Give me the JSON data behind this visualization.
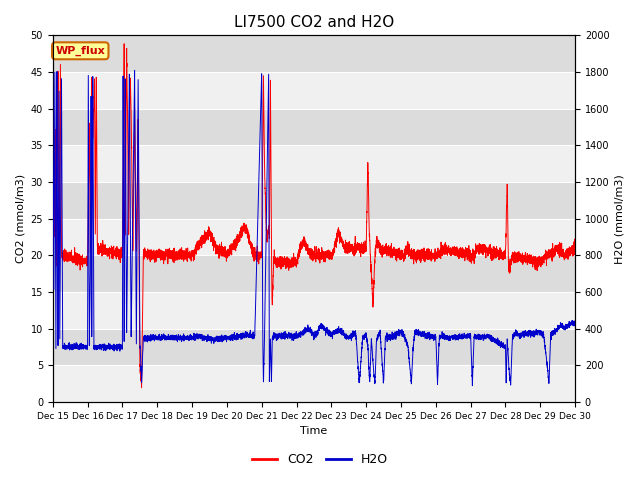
{
  "title": "LI7500 CO2 and H2O",
  "xlabel": "Time",
  "ylabel_left": "CO2 (mmol/m3)",
  "ylabel_right": "H2O (mmol/m3)",
  "ylim_left": [
    0,
    50
  ],
  "ylim_right": [
    0,
    2000
  ],
  "yticks_left": [
    0,
    5,
    10,
    15,
    20,
    25,
    30,
    35,
    40,
    45,
    50
  ],
  "yticks_right": [
    0,
    200,
    400,
    600,
    800,
    1000,
    1200,
    1400,
    1600,
    1800,
    2000
  ],
  "xtick_labels": [
    "Dec 15",
    "Dec 16",
    "Dec 17",
    "Dec 18",
    "Dec 19",
    "Dec 20",
    "Dec 21",
    "Dec 22",
    "Dec 23",
    "Dec 24",
    "Dec 25",
    "Dec 26",
    "Dec 27",
    "Dec 28",
    "Dec 29",
    "Dec 30"
  ],
  "co2_color": "#ff0000",
  "h2o_color": "#0000cd",
  "bg_color": "#ffffff",
  "plot_bg_light": "#f0f0f0",
  "plot_bg_dark": "#dcdcdc",
  "annotation_text": "WP_flux",
  "legend_co2": "CO2",
  "legend_h2o": "H2O",
  "grid_color": "#ffffff",
  "title_fontsize": 11
}
